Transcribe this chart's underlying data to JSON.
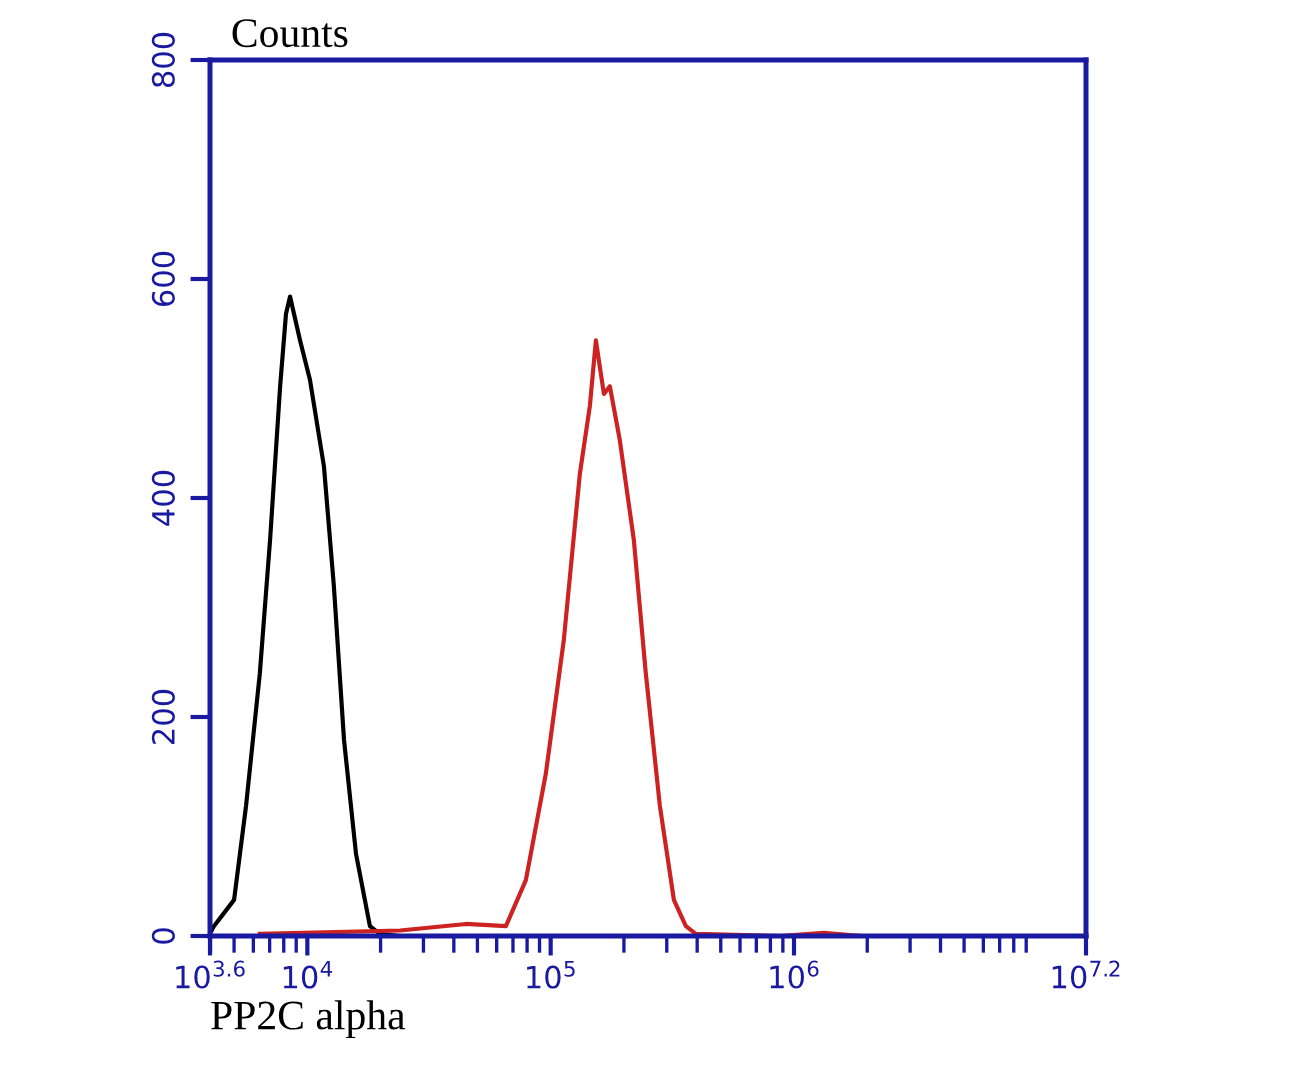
{
  "chart_data": {
    "type": "line",
    "xlabel": "PP2C alpha",
    "ylabel": "Counts",
    "log": "x",
    "xlim": [
      3981,
      15848932
    ],
    "ylim": [
      0,
      800
    ],
    "xticks": [
      {
        "value": 3981,
        "label": "10$^{3.6}$"
      },
      {
        "value": 10000,
        "label": "10$^{4}$"
      },
      {
        "value": 100000,
        "label": "10$^{5}$"
      },
      {
        "value": 1000000,
        "label": "10$^{6}$"
      },
      {
        "value": 15848932,
        "label": "10$^{7.2}$"
      }
    ],
    "yticks": [
      0,
      200,
      400,
      600,
      800
    ],
    "grid": false,
    "legend": false,
    "marker": "none",
    "line_style": "solid",
    "series": [
      {
        "color": "#000000",
        "x": [
          4000,
          4130,
          5000,
          5600,
          6380,
          7030,
          7730,
          8170,
          8490,
          9330,
          10250,
          11700,
          12850,
          14150,
          15850,
          18080,
          19870,
          24030
        ],
        "values": [
          3,
          9,
          33,
          119,
          240,
          362,
          502,
          568,
          584,
          544,
          508,
          429,
          320,
          179,
          75,
          9,
          2,
          0
        ]
      },
      {
        "color": "#cc2222",
        "x": [
          6380,
          24030,
          44870,
          65460,
          79070,
          95500,
          113200,
          131800,
          144900,
          153400,
          165500,
          175100,
          192300,
          219600,
          246000,
          281000,
          320900,
          359400,
          395200,
          875000,
          1327000,
          1862000
        ],
        "values": [
          2,
          5,
          11,
          9,
          51,
          148,
          270,
          422,
          484,
          544,
          495,
          502,
          453,
          362,
          240,
          119,
          33,
          9,
          2,
          0,
          3,
          0
        ]
      }
    ]
  }
}
